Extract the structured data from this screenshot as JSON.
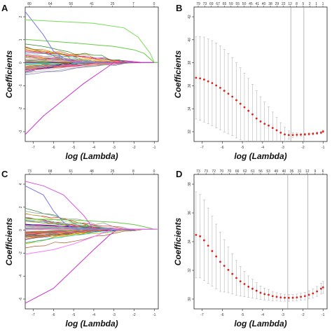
{
  "chart_data": [
    {
      "panel": "A",
      "type": "line",
      "xlabel": "log (Lambda)",
      "ylabel": "Coefficients",
      "x_ticks": [
        -7,
        -6,
        -5,
        -4,
        -3,
        -2,
        -1
      ],
      "top_ticks": [
        "80",
        "64",
        "56",
        "41",
        "25",
        "7",
        "0"
      ],
      "y_ticks": [
        "2",
        "1",
        "0",
        "-1",
        "-2",
        "-3"
      ],
      "xlim": [
        -7.4,
        -0.8
      ],
      "ylim": [
        -3.4,
        2.4
      ],
      "series_count": 60,
      "highlighted": [
        {
          "color": "#66cc44",
          "x": [
            -7.4,
            -5,
            -3,
            -2,
            -1.5,
            -1
          ],
          "y": [
            1.0,
            0.85,
            0.7,
            0.55,
            0.4,
            0
          ]
        },
        {
          "color": "#7777ee",
          "x": [
            -7.4,
            -6.5,
            -6,
            -5.5,
            -5
          ],
          "y": [
            2.2,
            1.2,
            0.5,
            0.2,
            0
          ]
        },
        {
          "color": "#cc33cc",
          "x": [
            -7.4,
            -6.5,
            -5.5,
            -4.5,
            -3.5,
            -3
          ],
          "y": [
            -3.1,
            -2.3,
            -1.6,
            -0.9,
            -0.3,
            0
          ]
        },
        {
          "color": "#77dd55",
          "x": [
            -7.4,
            -4,
            -2.5,
            -1.8,
            -1.2,
            -1
          ],
          "y": [
            1.85,
            1.7,
            1.5,
            1.1,
            0.4,
            0
          ]
        }
      ]
    },
    {
      "panel": "B",
      "type": "scatter",
      "xlabel": "log (Lambda)",
      "ylabel": "Coefficients",
      "x_ticks": [
        -7,
        -6,
        -5,
        -4,
        -3,
        -2,
        -1
      ],
      "top_ticks": [
        "79",
        "73",
        "69",
        "67",
        "65",
        "59",
        "55",
        "50",
        "45",
        "41",
        "40",
        "38",
        "29",
        "22",
        "12",
        "8",
        "5",
        "2",
        "1",
        "1"
      ],
      "y_ticks": [
        "42",
        "40",
        "38",
        "36",
        "34",
        "32"
      ],
      "xlim": [
        -7.4,
        -0.8
      ],
      "ylim": [
        31.6,
        43.0
      ],
      "x": [
        -7.3,
        -7.1,
        -6.9,
        -6.7,
        -6.5,
        -6.3,
        -6.1,
        -5.9,
        -5.7,
        -5.5,
        -5.3,
        -5.1,
        -4.9,
        -4.7,
        -4.5,
        -4.3,
        -4.1,
        -3.9,
        -3.7,
        -3.5,
        -3.3,
        -3.1,
        -2.9,
        -2.7,
        -2.5,
        -2.3,
        -2.1,
        -1.9,
        -1.7,
        -1.5,
        -1.3,
        -1.1,
        -1.0
      ],
      "values": [
        37.0,
        36.95,
        36.85,
        36.7,
        36.55,
        36.35,
        36.15,
        35.9,
        35.65,
        35.4,
        35.1,
        34.8,
        34.5,
        34.2,
        33.9,
        33.55,
        33.3,
        33.1,
        32.95,
        32.75,
        32.55,
        32.35,
        32.2,
        32.15,
        32.15,
        32.17,
        32.18,
        32.2,
        32.23,
        32.26,
        32.3,
        32.35,
        32.45
      ],
      "error": [
        3.5,
        3.55,
        3.6,
        3.6,
        3.6,
        3.6,
        3.55,
        3.5,
        3.4,
        3.3,
        3.2,
        3.05,
        2.9,
        2.75,
        2.55,
        2.35,
        2.1,
        1.85,
        1.6,
        1.35,
        1.1,
        0.85,
        0.6,
        0.35,
        0.2,
        0.15,
        0.12,
        0.1,
        0.1,
        0.1,
        0.1,
        0.1,
        0.1
      ],
      "vlines": [
        -2.6,
        -1.95
      ]
    },
    {
      "panel": "C",
      "type": "line",
      "xlabel": "log (Lambda)",
      "ylabel": "Coefficients",
      "x_ticks": [
        -7,
        -6,
        -5,
        -4,
        -3,
        -2,
        -1
      ],
      "top_ticks": [
        "73",
        "68",
        "61",
        "48",
        "25",
        "8",
        "0"
      ],
      "y_ticks": [
        "4",
        "2",
        "0",
        "-2",
        "-4",
        "-6"
      ],
      "xlim": [
        -7.4,
        -0.8
      ],
      "ylim": [
        -7.0,
        4.8
      ],
      "series_count": 60,
      "highlighted": [
        {
          "color": "#cc33cc",
          "x": [
            -7.4,
            -6,
            -5,
            -4,
            -3.2,
            -2.8
          ],
          "y": [
            -6.5,
            -5.2,
            -3.5,
            -1.8,
            -0.5,
            0
          ]
        },
        {
          "color": "#dd55dd",
          "x": [
            -7.4,
            -6.5,
            -5.5,
            -4.5,
            -4
          ],
          "y": [
            4.2,
            3.8,
            3.0,
            1.2,
            0
          ]
        },
        {
          "color": "#7777ee",
          "x": [
            -7.4,
            -6.5,
            -6,
            -5.5,
            -5
          ],
          "y": [
            3.8,
            3.0,
            1.6,
            0.6,
            0
          ]
        },
        {
          "color": "#66cc44",
          "x": [
            -7.4,
            -5,
            -3,
            -2,
            -1.5,
            -1
          ],
          "y": [
            0.9,
            0.8,
            0.6,
            0.4,
            0.2,
            0
          ]
        },
        {
          "color": "#ff77ff",
          "x": [
            -7.4,
            -6,
            -5,
            -4.2,
            -3.5,
            -3
          ],
          "y": [
            -2.2,
            -1.8,
            -1.3,
            -0.8,
            -0.3,
            0
          ]
        }
      ]
    },
    {
      "panel": "D",
      "type": "scatter",
      "xlabel": "log (Lambda)",
      "ylabel": "Coefficients",
      "x_ticks": [
        -7,
        -6,
        -5,
        -4,
        -3,
        -2,
        -1
      ],
      "top_ticks": [
        "73",
        "73",
        "72",
        "70",
        "70",
        "66",
        "62",
        "61",
        "56",
        "53",
        "49",
        "40",
        "35",
        "31",
        "12",
        "9",
        "6"
      ],
      "y_ticks": [
        "38",
        "36",
        "34",
        "32",
        "30"
      ],
      "xlim": [
        -7.4,
        -0.8
      ],
      "ylim": [
        29.5,
        39.5
      ],
      "x": [
        -7.3,
        -7.1,
        -6.9,
        -6.7,
        -6.5,
        -6.3,
        -6.1,
        -5.9,
        -5.7,
        -5.5,
        -5.3,
        -5.1,
        -4.9,
        -4.7,
        -4.5,
        -4.3,
        -4.1,
        -3.9,
        -3.7,
        -3.5,
        -3.3,
        -3.1,
        -2.9,
        -2.7,
        -2.5,
        -2.3,
        -2.1,
        -1.9,
        -1.7,
        -1.5,
        -1.3,
        -1.1,
        -1.0
      ],
      "values": [
        35.0,
        34.9,
        34.6,
        34.2,
        33.8,
        33.4,
        33.0,
        32.7,
        32.4,
        32.1,
        31.8,
        31.55,
        31.35,
        31.15,
        31.0,
        30.85,
        30.7,
        30.6,
        30.55,
        30.45,
        30.4,
        30.35,
        30.33,
        30.32,
        30.33,
        30.35,
        30.4,
        30.45,
        30.55,
        30.65,
        30.8,
        31.0,
        31.1
      ],
      "error": [
        3.2,
        3.1,
        3.0,
        2.8,
        2.6,
        2.4,
        2.2,
        1.95,
        1.7,
        1.5,
        1.3,
        1.1,
        0.95,
        0.8,
        0.7,
        0.6,
        0.5,
        0.45,
        0.4,
        0.35,
        0.3,
        0.28,
        0.26,
        0.25,
        0.25,
        0.25,
        0.26,
        0.28,
        0.3,
        0.33,
        0.37,
        0.4,
        0.45
      ],
      "vlines": [
        -2.75,
        -1.75
      ]
    }
  ]
}
